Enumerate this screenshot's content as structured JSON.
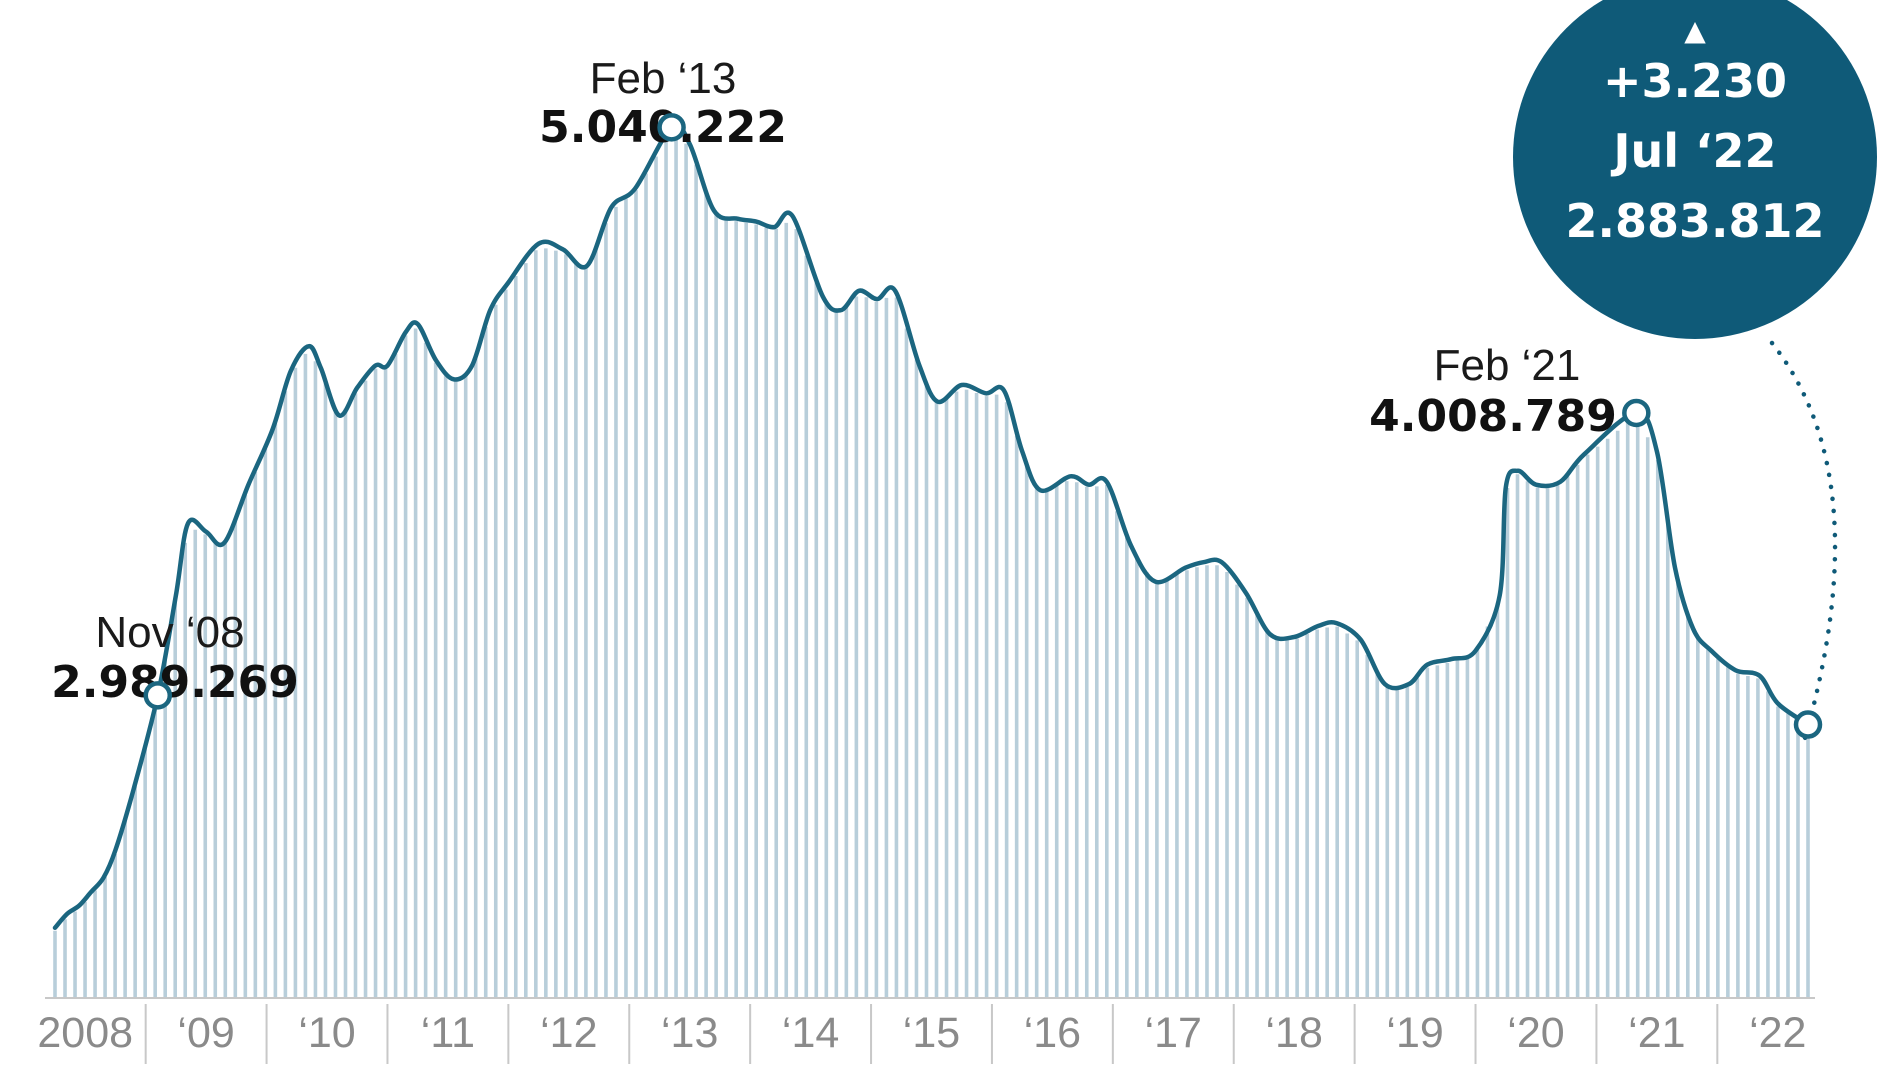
{
  "chart_data": {
    "type": "area",
    "title": "",
    "xlabel": "",
    "ylabel": "",
    "ylim": [
      1900000,
      5500000
    ],
    "x_start": 2008.0,
    "x_end": 2022.5,
    "colors": {
      "line": "#1b6680",
      "fill_line": "#b8ceda",
      "bubble": "#0f5a78",
      "tick": "#8a8a8a",
      "axis": "#c8c8c8"
    },
    "points": [
      [
        2008.0,
        2150000
      ],
      [
        2008.1,
        2200000
      ],
      [
        2008.2,
        2230000
      ],
      [
        2008.3,
        2280000
      ],
      [
        2008.4,
        2330000
      ],
      [
        2008.5,
        2430000
      ],
      [
        2008.65,
        2650000
      ],
      [
        2008.85,
        2989269
      ],
      [
        2009.0,
        3350000
      ],
      [
        2009.1,
        3610000
      ],
      [
        2009.25,
        3580000
      ],
      [
        2009.4,
        3540000
      ],
      [
        2009.6,
        3750000
      ],
      [
        2009.8,
        3950000
      ],
      [
        2009.95,
        4160000
      ],
      [
        2010.1,
        4250000
      ],
      [
        2010.2,
        4170000
      ],
      [
        2010.35,
        4000000
      ],
      [
        2010.5,
        4100000
      ],
      [
        2010.65,
        4180000
      ],
      [
        2010.75,
        4180000
      ],
      [
        2010.9,
        4300000
      ],
      [
        2011.0,
        4330000
      ],
      [
        2011.15,
        4200000
      ],
      [
        2011.3,
        4130000
      ],
      [
        2011.45,
        4180000
      ],
      [
        2011.6,
        4380000
      ],
      [
        2011.75,
        4480000
      ],
      [
        2012.0,
        4620000
      ],
      [
        2012.2,
        4600000
      ],
      [
        2012.4,
        4540000
      ],
      [
        2012.6,
        4750000
      ],
      [
        2012.8,
        4820000
      ],
      [
        2013.1,
        5040222
      ],
      [
        2013.25,
        4980000
      ],
      [
        2013.45,
        4740000
      ],
      [
        2013.65,
        4710000
      ],
      [
        2013.8,
        4700000
      ],
      [
        2013.95,
        4680000
      ],
      [
        2014.1,
        4720000
      ],
      [
        2014.35,
        4430000
      ],
      [
        2014.5,
        4380000
      ],
      [
        2014.65,
        4450000
      ],
      [
        2014.8,
        4420000
      ],
      [
        2014.95,
        4450000
      ],
      [
        2015.15,
        4180000
      ],
      [
        2015.3,
        4050000
      ],
      [
        2015.5,
        4110000
      ],
      [
        2015.7,
        4080000
      ],
      [
        2015.85,
        4090000
      ],
      [
        2016.0,
        3870000
      ],
      [
        2016.15,
        3730000
      ],
      [
        2016.4,
        3780000
      ],
      [
        2016.55,
        3750000
      ],
      [
        2016.7,
        3760000
      ],
      [
        2016.9,
        3530000
      ],
      [
        2017.1,
        3400000
      ],
      [
        2017.35,
        3450000
      ],
      [
        2017.5,
        3470000
      ],
      [
        2017.65,
        3470000
      ],
      [
        2017.85,
        3360000
      ],
      [
        2018.05,
        3210000
      ],
      [
        2018.25,
        3200000
      ],
      [
        2018.45,
        3240000
      ],
      [
        2018.6,
        3250000
      ],
      [
        2018.8,
        3190000
      ],
      [
        2019.0,
        3030000
      ],
      [
        2019.2,
        3030000
      ],
      [
        2019.35,
        3100000
      ],
      [
        2019.55,
        3120000
      ],
      [
        2019.75,
        3150000
      ],
      [
        2019.95,
        3350000
      ],
      [
        2020.0,
        3740000
      ],
      [
        2020.1,
        3800000
      ],
      [
        2020.25,
        3750000
      ],
      [
        2020.45,
        3760000
      ],
      [
        2020.65,
        3860000
      ],
      [
        2021.08,
        4008789
      ],
      [
        2021.25,
        3870000
      ],
      [
        2021.4,
        3450000
      ],
      [
        2021.55,
        3230000
      ],
      [
        2021.7,
        3150000
      ],
      [
        2021.9,
        3080000
      ],
      [
        2022.1,
        3060000
      ],
      [
        2022.25,
        2960000
      ],
      [
        2022.5,
        2883812
      ]
    ],
    "bar_count": 176,
    "x_ticks": [
      {
        "label": "2008",
        "x": 2008.25
      },
      {
        "label": "‘09",
        "x": 2009.25
      },
      {
        "label": "‘10",
        "x": 2010.25
      },
      {
        "label": "‘11",
        "x": 2011.25
      },
      {
        "label": "‘12",
        "x": 2012.25
      },
      {
        "label": "‘13",
        "x": 2013.25
      },
      {
        "label": "‘14",
        "x": 2014.25
      },
      {
        "label": "‘15",
        "x": 2015.25
      },
      {
        "label": "‘16",
        "x": 2016.25
      },
      {
        "label": "‘17",
        "x": 2017.25
      },
      {
        "label": "‘18",
        "x": 2018.25
      },
      {
        "label": "‘19",
        "x": 2019.25
      },
      {
        "label": "‘20",
        "x": 2020.25
      },
      {
        "label": "‘21",
        "x": 2021.25
      },
      {
        "label": "‘22",
        "x": 2022.25
      }
    ],
    "separators": [
      2008.75,
      2009.75,
      2010.75,
      2011.75,
      2012.75,
      2013.75,
      2014.75,
      2015.75,
      2016.75,
      2017.75,
      2018.75,
      2019.75,
      2020.75,
      2021.75
    ],
    "annotations": [
      {
        "id": "nov08",
        "date": "Nov ‘08",
        "value": "2.989.269",
        "x": 2008.85,
        "y": 2989269
      },
      {
        "id": "feb13",
        "date": "Feb ‘13",
        "value": "5.040.222",
        "x": 2013.1,
        "y": 5040222
      },
      {
        "id": "feb21",
        "date": "Feb ‘21",
        "value": "4.008.789",
        "x": 2021.08,
        "y": 4008789
      },
      {
        "id": "jul22",
        "date": "Jul ‘22",
        "value": "2.883.812",
        "x": 2022.5,
        "y": 2883812
      }
    ],
    "highlight": {
      "arrow": "▲",
      "change": "+3.230",
      "date": "Jul ‘22",
      "value": "2.883.812"
    }
  }
}
